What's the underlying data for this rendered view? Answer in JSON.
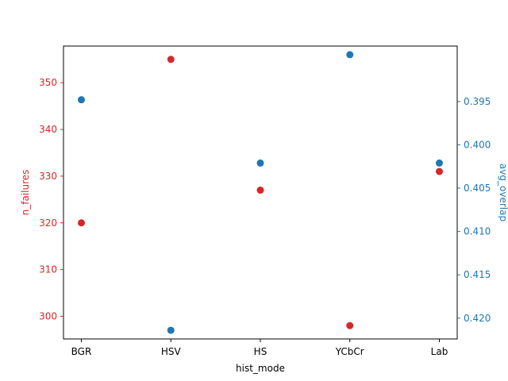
{
  "chart_data": {
    "type": "scatter",
    "categories": [
      "BGR",
      "HSV",
      "HS",
      "YCbCr",
      "Lab"
    ],
    "xlabel": "hist_mode",
    "left_axis": {
      "label": "n_failures",
      "color": "#d62728",
      "ticks": [
        300,
        310,
        320,
        330,
        340,
        350
      ],
      "tick_labels": [
        "300",
        "310",
        "320",
        "330",
        "340",
        "350"
      ],
      "range": [
        295.15,
        357.85
      ],
      "inverted": false
    },
    "right_axis": {
      "label": "avg_overlap",
      "color": "#1f77b4",
      "ticks": [
        0.395,
        0.4,
        0.405,
        0.41,
        0.415,
        0.42
      ],
      "tick_labels": [
        "0.395",
        "0.400",
        "0.405",
        "0.410",
        "0.415",
        "0.420"
      ],
      "range": [
        0.3886,
        0.4224
      ],
      "inverted": true
    },
    "series": [
      {
        "name": "n_failures",
        "axis": "left",
        "color": "#d62728",
        "values": [
          320,
          355,
          327,
          298,
          331
        ]
      },
      {
        "name": "avg_overlap",
        "axis": "right",
        "color": "#1f77b4",
        "values": [
          0.3948,
          0.4214,
          0.4021,
          0.3896,
          0.4021
        ]
      }
    ],
    "grid": false
  }
}
